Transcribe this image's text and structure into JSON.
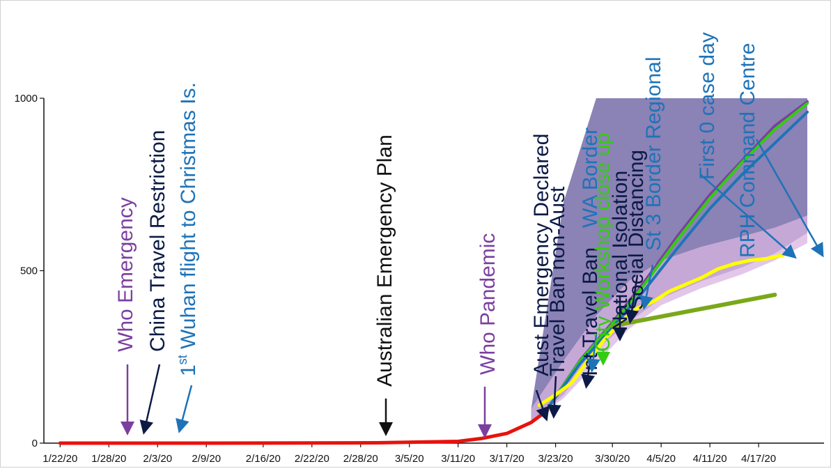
{
  "colors": {
    "purple": "#7b3fa0",
    "navy": "#0b1a45",
    "blue": "#1e73b8",
    "green": "#33cc11",
    "black": "#111111",
    "red": "#e8120c",
    "yellow": "#ffff00",
    "olive": "#7aa81a",
    "band_purple": "#6a5fa0",
    "band_light": "#d8b4e2"
  },
  "chart_data": {
    "type": "line",
    "title": "",
    "xlabel": "",
    "ylabel": "",
    "ylim": [
      0,
      1000
    ],
    "yticks": [
      "0",
      "500",
      "1000"
    ],
    "x_tick_labels": [
      "1/22/20",
      "1/28/20",
      "2/3/20",
      "2/9/20",
      "2/16/20",
      "2/22/20",
      "2/28/20",
      "3/5/20",
      "3/11/20",
      "3/17/20",
      "3/23/20",
      "3/30/20",
      "4/5/20",
      "4/11/20",
      "4/17/20"
    ],
    "grid": false,
    "series": [
      {
        "color": "red",
        "x": [
          "2020-01-22",
          "2020-02-10",
          "2020-03-01",
          "2020-03-11",
          "2020-03-14",
          "2020-03-17",
          "2020-03-20",
          "2020-03-22"
        ],
        "values": [
          0,
          0,
          1,
          5,
          14,
          28,
          60,
          95
        ]
      },
      {
        "color": "yellow",
        "x": [
          "2020-03-21",
          "2020-03-23",
          "2020-03-25",
          "2020-03-27",
          "2020-03-29",
          "2020-03-31",
          "2020-04-02",
          "2020-04-04",
          "2020-04-06",
          "2020-04-08",
          "2020-04-10",
          "2020-04-12",
          "2020-04-14",
          "2020-04-16",
          "2020-04-18",
          "2020-04-20"
        ],
        "values": [
          110,
          140,
          175,
          240,
          300,
          350,
          390,
          410,
          440,
          460,
          480,
          505,
          520,
          530,
          535,
          545
        ]
      },
      {
        "color": "purple",
        "x": [
          "2020-03-22",
          "2020-03-26",
          "2020-03-30",
          "2020-04-03",
          "2020-04-07",
          "2020-04-11",
          "2020-04-15",
          "2020-04-19",
          "2020-04-23"
        ],
        "values": [
          100,
          240,
          350,
          470,
          600,
          720,
          820,
          920,
          990
        ]
      },
      {
        "color": "green",
        "x": [
          "2020-03-22",
          "2020-03-26",
          "2020-03-30",
          "2020-04-03",
          "2020-04-07",
          "2020-04-11",
          "2020-04-15",
          "2020-04-19",
          "2020-04-23"
        ],
        "values": [
          100,
          238,
          345,
          462,
          590,
          710,
          815,
          910,
          985
        ]
      },
      {
        "color": "blue",
        "x": [
          "2020-03-22",
          "2020-03-26",
          "2020-03-30",
          "2020-04-03",
          "2020-04-07",
          "2020-04-11",
          "2020-04-15",
          "2020-04-19",
          "2020-04-23"
        ],
        "values": [
          100,
          230,
          335,
          445,
          565,
          680,
          780,
          870,
          960
        ]
      },
      {
        "color": "olive",
        "x": [
          "2020-03-30",
          "2020-04-19"
        ],
        "values": [
          340,
          430
        ]
      }
    ],
    "bands": [
      {
        "color": "band_purple",
        "x": [
          "2020-03-20",
          "2020-03-24",
          "2020-03-28",
          "2020-04-01",
          "2020-04-05",
          "2020-04-10",
          "2020-04-15",
          "2020-04-19",
          "2020-04-23"
        ],
        "upper": [
          100,
          700,
          1000,
          1000,
          1000,
          1000,
          1000,
          1000,
          1000
        ],
        "lower": [
          60,
          140,
          270,
          350,
          420,
          470,
          510,
          550,
          610
        ]
      },
      {
        "color": "band_light",
        "x": [
          "2020-03-20",
          "2020-03-24",
          "2020-03-28",
          "2020-04-01",
          "2020-04-05",
          "2020-04-10",
          "2020-04-15",
          "2020-04-19",
          "2020-04-23"
        ],
        "upper": [
          100,
          240,
          370,
          470,
          530,
          570,
          600,
          625,
          660
        ],
        "lower": [
          60,
          130,
          230,
          330,
          400,
          450,
          490,
          530,
          580
        ]
      }
    ],
    "annotations": [
      {
        "text": "Who Emergency",
        "color": "purple",
        "date": "2020-01-28"
      },
      {
        "text": "China Travel Restriction",
        "color": "navy",
        "date": "2020-01-30"
      },
      {
        "text": "1st Wuhan flight to Christmas Is.",
        "color": "blue",
        "date": "2020-02-03"
      },
      {
        "text": "Australian Emergency Plan",
        "color": "black",
        "date": "2020-02-28"
      },
      {
        "text": "Who Pandemic",
        "color": "purple",
        "date": "2020-03-11"
      },
      {
        "text": "Aust Emergency Declared",
        "color": "navy",
        "date": "2020-03-15"
      },
      {
        "text": "Travel Ban non-Aust",
        "color": "navy",
        "date": "2020-03-20"
      },
      {
        "text": "Int Travel Ban",
        "color": "navy",
        "date": "2020-03-22"
      },
      {
        "text": "WA Border",
        "color": "blue",
        "date": "2020-03-24"
      },
      {
        "text": "City Workshop close up",
        "color": "green",
        "date": "2020-03-25"
      },
      {
        "text": "National Isolation",
        "color": "navy",
        "date": "2020-03-27"
      },
      {
        "text": "Social Distancing",
        "color": "navy",
        "date": "2020-03-29"
      },
      {
        "text": "St 3 Border Regional",
        "color": "blue",
        "date": "2020-03-31"
      },
      {
        "text": "First 0 case day",
        "color": "blue",
        "date": "2020-04-07"
      },
      {
        "text": "RPH Command Centre",
        "color": "blue",
        "date": "2020-04-12"
      }
    ]
  }
}
